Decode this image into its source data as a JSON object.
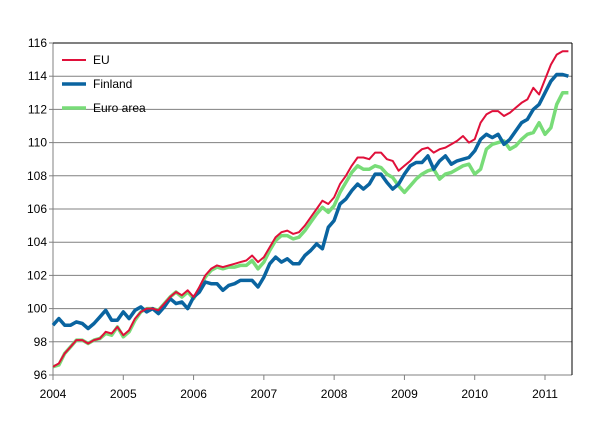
{
  "chart_data": {
    "type": "line",
    "title": "",
    "xlabel": "",
    "ylabel": "",
    "x_start": "2004-01",
    "x_frequency": "monthly",
    "xlim": [
      2004,
      2011.42
    ],
    "ylim": [
      96,
      116
    ],
    "y_ticks": [
      "96",
      "98",
      "100",
      "102",
      "104",
      "106",
      "108",
      "110",
      "112",
      "114",
      "116"
    ],
    "x_ticks": [
      "2004",
      "2005",
      "2006",
      "2007",
      "2008",
      "2009",
      "2010",
      "2011"
    ],
    "grid": "horizontal",
    "legend_position": "top-left",
    "series": [
      {
        "name": "EU",
        "color": "#e0103a",
        "values": [
          96.5,
          96.7,
          97.3,
          97.7,
          98.1,
          98.1,
          97.9,
          98.1,
          98.2,
          98.6,
          98.5,
          98.9,
          98.4,
          98.7,
          99.4,
          99.8,
          100.0,
          100.0,
          99.9,
          100.3,
          100.7,
          101.0,
          100.8,
          101.1,
          100.7,
          101.3,
          102.0,
          102.4,
          102.6,
          102.5,
          102.6,
          102.7,
          102.8,
          102.9,
          103.2,
          102.8,
          103.1,
          103.7,
          104.3,
          104.6,
          104.7,
          104.5,
          104.6,
          105.0,
          105.5,
          106.0,
          106.5,
          106.3,
          106.7,
          107.5,
          108.0,
          108.6,
          109.1,
          109.1,
          109.0,
          109.4,
          109.4,
          109.0,
          108.9,
          108.3,
          108.6,
          108.9,
          109.3,
          109.6,
          109.7,
          109.4,
          109.6,
          109.7,
          109.9,
          110.1,
          110.4,
          110.0,
          110.2,
          111.2,
          111.7,
          111.9,
          111.9,
          111.6,
          111.8,
          112.1,
          112.4,
          112.6,
          113.3,
          112.9,
          113.8,
          114.7,
          115.3,
          115.5,
          115.5
        ]
      },
      {
        "name": "Finland",
        "color": "#0a64a0",
        "values": [
          99.0,
          99.4,
          99.0,
          99.0,
          99.2,
          99.1,
          98.8,
          99.1,
          99.5,
          99.9,
          99.3,
          99.3,
          99.8,
          99.4,
          99.9,
          100.1,
          99.8,
          100.0,
          99.7,
          100.1,
          100.6,
          100.3,
          100.4,
          100.0,
          100.7,
          101.0,
          101.6,
          101.5,
          101.5,
          101.1,
          101.4,
          101.5,
          101.7,
          101.7,
          101.7,
          101.3,
          101.9,
          102.7,
          103.1,
          102.8,
          103.0,
          102.7,
          102.7,
          103.2,
          103.5,
          103.9,
          103.6,
          104.9,
          105.3,
          106.3,
          106.6,
          107.1,
          107.5,
          107.2,
          107.5,
          108.1,
          108.1,
          107.6,
          107.2,
          107.5,
          108.1,
          108.6,
          108.8,
          108.8,
          109.2,
          108.4,
          108.9,
          109.2,
          108.7,
          108.9,
          109.0,
          109.1,
          109.5,
          110.2,
          110.5,
          110.3,
          110.5,
          109.9,
          110.2,
          110.7,
          111.2,
          111.4,
          112.0,
          112.3,
          113.0,
          113.7,
          114.1,
          114.1,
          114.0
        ]
      },
      {
        "name": "Euro area",
        "color": "#78dc78",
        "values": [
          96.5,
          96.6,
          97.3,
          97.7,
          98.1,
          98.1,
          97.9,
          98.1,
          98.2,
          98.5,
          98.4,
          98.9,
          98.3,
          98.6,
          99.3,
          99.8,
          100.0,
          100.0,
          99.9,
          100.3,
          100.7,
          101.0,
          100.7,
          101.0,
          100.6,
          101.2,
          101.9,
          102.3,
          102.5,
          102.4,
          102.5,
          102.5,
          102.6,
          102.6,
          102.9,
          102.4,
          102.8,
          103.5,
          104.1,
          104.4,
          104.4,
          104.2,
          104.3,
          104.7,
          105.2,
          105.7,
          106.1,
          105.8,
          106.2,
          107.0,
          107.6,
          108.2,
          108.6,
          108.4,
          108.4,
          108.6,
          108.5,
          108.1,
          107.9,
          107.4,
          107.0,
          107.4,
          107.8,
          108.1,
          108.3,
          108.4,
          107.8,
          108.1,
          108.2,
          108.4,
          108.6,
          108.7,
          108.1,
          108.4,
          109.6,
          109.9,
          110.0,
          110.1,
          109.6,
          109.8,
          110.2,
          110.5,
          110.6,
          111.2,
          110.5,
          110.9,
          112.3,
          113.0,
          113.0
        ]
      }
    ]
  }
}
